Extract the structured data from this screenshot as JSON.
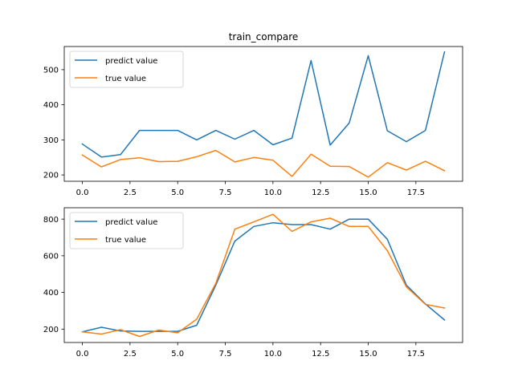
{
  "chart_data": [
    {
      "type": "line",
      "title": "train_compare",
      "xlabel": "",
      "ylabel": "",
      "xlim": [
        -0.95,
        19.95
      ],
      "ylim": [
        182,
        566
      ],
      "xticks": [
        0,
        2.5,
        5,
        7.5,
        10,
        12.5,
        15,
        17.5
      ],
      "xtick_labels": [
        "0.0",
        "2.5",
        "5.0",
        "7.5",
        "10.0",
        "12.5",
        "15.0",
        "17.5"
      ],
      "yticks": [
        200,
        300,
        400,
        500
      ],
      "ytick_labels": [
        "200",
        "300",
        "400",
        "500"
      ],
      "legend_position": "upper-left",
      "grid": false,
      "x": [
        0,
        1,
        2,
        3,
        4,
        5,
        6,
        7,
        8,
        9,
        10,
        11,
        12,
        13,
        14,
        15,
        16,
        17,
        18,
        19
      ],
      "series": [
        {
          "name": "predict value",
          "color": "#1f77b4",
          "values": [
            288,
            251,
            258,
            327,
            327,
            327,
            300,
            327,
            302,
            327,
            286,
            305,
            526,
            285,
            348,
            540,
            326,
            295,
            327,
            551
          ]
        },
        {
          "name": "true value",
          "color": "#ff7f0e",
          "values": [
            257,
            223,
            244,
            249,
            238,
            239,
            252,
            270,
            237,
            250,
            242,
            196,
            259,
            225,
            224,
            194,
            235,
            214,
            239,
            212
          ]
        }
      ]
    },
    {
      "type": "line",
      "title": "",
      "xlabel": "",
      "ylabel": "",
      "xlim": [
        -0.95,
        19.95
      ],
      "ylim": [
        127,
        862
      ],
      "xticks": [
        0,
        2.5,
        5,
        7.5,
        10,
        12.5,
        15,
        17.5
      ],
      "xtick_labels": [
        "0.0",
        "2.5",
        "5.0",
        "7.5",
        "10.0",
        "12.5",
        "15.0",
        "17.5"
      ],
      "yticks": [
        200,
        400,
        600,
        800
      ],
      "ytick_labels": [
        "200",
        "400",
        "600",
        "800"
      ],
      "legend_position": "upper-left",
      "grid": false,
      "x": [
        0,
        1,
        2,
        3,
        4,
        5,
        6,
        7,
        8,
        9,
        10,
        11,
        12,
        13,
        14,
        15,
        16,
        17,
        18,
        19
      ],
      "series": [
        {
          "name": "predict value",
          "color": "#1f77b4",
          "values": [
            185,
            210,
            190,
            188,
            188,
            188,
            221,
            440,
            680,
            760,
            780,
            770,
            770,
            745,
            800,
            800,
            690,
            440,
            337,
            250
          ]
        },
        {
          "name": "true value",
          "color": "#ff7f0e",
          "values": [
            185,
            173,
            197,
            160,
            195,
            180,
            254,
            450,
            745,
            785,
            826,
            733,
            785,
            805,
            760,
            760,
            628,
            430,
            335,
            315
          ]
        }
      ]
    }
  ]
}
